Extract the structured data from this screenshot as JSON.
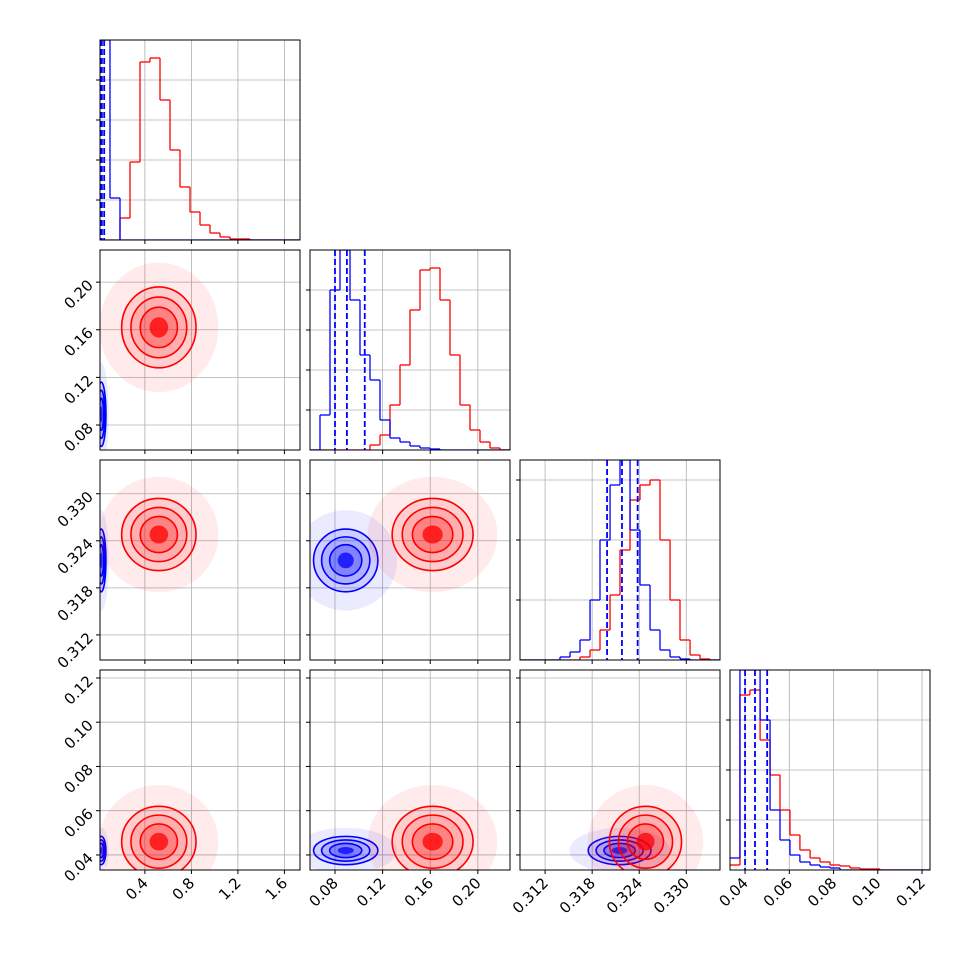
{
  "chart_data": {
    "type": "corner",
    "parameters": [
      {
        "lim": [
          0.014,
          1.734
        ],
        "ticks": [
          0.4,
          0.8,
          1.2,
          1.6
        ],
        "bins": [
          0.014,
          0.1,
          0.186,
          0.272,
          0.358,
          0.444,
          0.53,
          0.616,
          0.702,
          0.788,
          0.874,
          0.96,
          1.046,
          1.132,
          1.218,
          1.304,
          1.39,
          1.476,
          1.562,
          1.648,
          1.734
        ],
        "hist_ylim": [
          0,
          200
        ],
        "hist_yticks": [
          40,
          80,
          120,
          160
        ]
      },
      {
        "lim": [
          0.059,
          0.227
        ],
        "ticks": [
          0.08,
          0.12,
          0.16,
          {
            "value": 0.2,
            "label": "0.20"
          }
        ],
        "bins": [
          0.059,
          0.0674,
          0.0758,
          0.0842,
          0.0926,
          0.101,
          0.1094,
          0.1178,
          0.1262,
          0.1346,
          0.143,
          0.1514,
          0.1598,
          0.1682,
          0.1766,
          0.185,
          0.1934,
          0.2018,
          0.2102,
          0.2186,
          0.227
        ],
        "hist_ylim": [
          0,
          200
        ],
        "hist_yticks": [
          40,
          80,
          120,
          160
        ]
      },
      {
        "lim": [
          0.3088,
          0.3343
        ],
        "ticks": [
          0.312,
          0.318,
          0.324,
          {
            "value": 0.33,
            "label": "0.330"
          }
        ],
        "bins": [
          0.3088,
          0.31008,
          0.31135,
          0.31263,
          0.3139,
          0.31518,
          0.31645,
          0.31773,
          0.319,
          0.32028,
          0.32155,
          0.32283,
          0.3241,
          0.32538,
          0.32665,
          0.32793,
          0.3292,
          0.33048,
          0.33175,
          0.33303,
          0.3343
        ],
        "hist_ylim": [
          0,
          200
        ],
        "hist_yticks": [
          60,
          120,
          180
        ]
      },
      {
        "lim": [
          0.0332,
          0.1236
        ],
        "ticks": [
          0.04,
          0.06,
          0.08,
          {
            "value": 0.1,
            "label": "0.10"
          },
          0.12
        ],
        "bins": [
          0.0332,
          0.0377,
          0.0422,
          0.0468,
          0.0513,
          0.0558,
          0.0603,
          0.0648,
          0.0694,
          0.0739,
          0.0784,
          0.0829,
          0.0874,
          0.092,
          0.0965,
          0.101,
          0.1055,
          0.11,
          0.1146,
          0.1191,
          0.1236
        ],
        "hist_ylim": [
          0,
          200
        ],
        "hist_yticks": [
          50,
          100,
          150
        ]
      }
    ],
    "series": [
      {
        "color": "#0000ff",
        "mean": [
          0.025,
          0.089,
          0.3215,
          0.042
        ],
        "std": [
          0.02,
          0.0135,
          0.002,
          0.0032
        ],
        "counts": [
          [
            200,
            42,
            0,
            0,
            0,
            0,
            0,
            0,
            0,
            0,
            0,
            0,
            0,
            0,
            0,
            0,
            0,
            0,
            0,
            0
          ],
          [
            0,
            35,
            160,
            200,
            150,
            95,
            70,
            30,
            12,
            8,
            4,
            2,
            1,
            0,
            0,
            0,
            0,
            0,
            0,
            0
          ],
          [
            0,
            0,
            0,
            0,
            3,
            8,
            20,
            60,
            120,
            175,
            200,
            130,
            75,
            30,
            10,
            3,
            1,
            0,
            0,
            0
          ],
          [
            12,
            200,
            200,
            150,
            60,
            30,
            15,
            8,
            5,
            3,
            2,
            0,
            0,
            0,
            0,
            0,
            0,
            0,
            0,
            0
          ]
        ],
        "quantiles": [
          [
            0.02,
            0.03,
            0.05
          ],
          [
            0.08,
            0.09,
            0.105
          ],
          [
            0.3199,
            0.3218,
            0.3238
          ],
          [
            0.04,
            0.0445,
            0.05
          ]
        ]
      },
      {
        "color": "#ff0000",
        "mean": [
          0.52,
          0.162,
          0.3248,
          0.046
        ],
        "std": [
          0.16,
          0.017,
          0.0023,
          0.008
        ],
        "counts": [
          [
            0,
            0,
            22,
            78,
            178,
            182,
            140,
            90,
            53,
            28,
            15,
            7,
            3,
            1,
            1,
            0,
            0,
            0,
            0,
            0
          ],
          [
            0,
            0,
            0,
            0,
            0,
            0,
            5,
            15,
            45,
            85,
            140,
            180,
            182,
            150,
            95,
            45,
            20,
            8,
            2,
            0
          ],
          [
            0,
            0,
            0,
            0,
            0,
            0,
            3,
            10,
            30,
            65,
            110,
            160,
            175,
            180,
            120,
            60,
            20,
            5,
            1,
            0
          ],
          [
            5,
            175,
            180,
            130,
            95,
            60,
            35,
            20,
            12,
            8,
            5,
            4,
            2,
            1,
            1,
            0,
            0,
            0,
            0,
            0
          ]
        ]
      }
    ],
    "grid": true
  }
}
